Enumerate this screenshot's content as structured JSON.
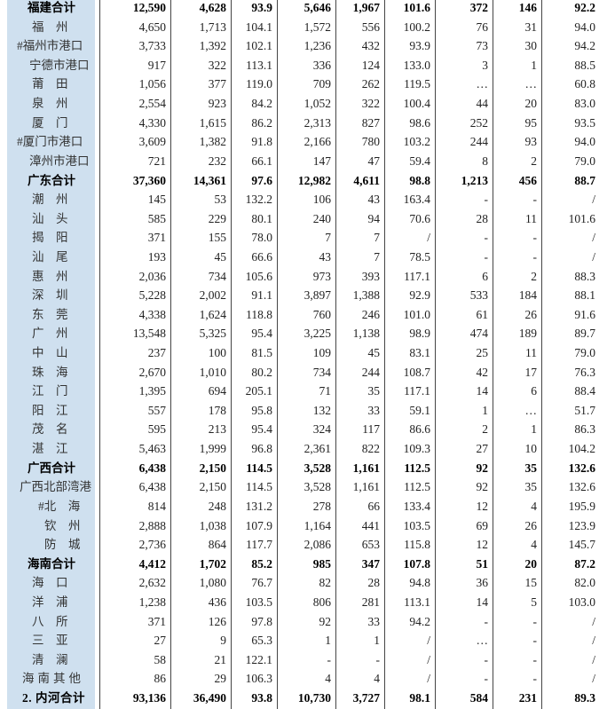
{
  "colors": {
    "name_column_bg": "#cfe0ef",
    "grid_line": "#454545",
    "text_regular": "#222222",
    "text_bold": "#000000"
  },
  "table": {
    "rows": [
      {
        "name": "福建合计",
        "level": "section",
        "values": [
          "12,590",
          "4,628",
          "93.9",
          "5,646",
          "1,967",
          "101.6",
          "372",
          "146",
          "92.2"
        ]
      },
      {
        "name": "福　州",
        "level": "city",
        "values": [
          "4,650",
          "1,713",
          "104.1",
          "1,572",
          "556",
          "100.2",
          "76",
          "31",
          "94.0"
        ]
      },
      {
        "name": "#福州市港口",
        "level": "hash",
        "values": [
          "3,733",
          "1,392",
          "102.1",
          "1,236",
          "432",
          "93.9",
          "73",
          "30",
          "94.2"
        ]
      },
      {
        "name": "宁德市港口",
        "level": "sub",
        "values": [
          "917",
          "322",
          "113.1",
          "336",
          "124",
          "133.0",
          "3",
          "1",
          "88.5"
        ]
      },
      {
        "name": "莆　田",
        "level": "city",
        "values": [
          "1,056",
          "377",
          "119.0",
          "709",
          "262",
          "119.5",
          "…",
          "…",
          "60.8"
        ]
      },
      {
        "name": "泉　州",
        "level": "city",
        "values": [
          "2,554",
          "923",
          "84.2",
          "1,052",
          "322",
          "100.4",
          "44",
          "20",
          "83.0"
        ]
      },
      {
        "name": "厦　门",
        "level": "city",
        "values": [
          "4,330",
          "1,615",
          "86.2",
          "2,313",
          "827",
          "98.6",
          "252",
          "95",
          "93.5"
        ]
      },
      {
        "name": "#厦门市港口",
        "level": "hash",
        "values": [
          "3,609",
          "1,382",
          "91.8",
          "2,166",
          "780",
          "103.2",
          "244",
          "93",
          "94.0"
        ]
      },
      {
        "name": "漳州市港口",
        "level": "sub",
        "values": [
          "721",
          "232",
          "66.1",
          "147",
          "47",
          "59.4",
          "8",
          "2",
          "79.0"
        ]
      },
      {
        "name": "广东合计",
        "level": "section",
        "values": [
          "37,360",
          "14,361",
          "97.6",
          "12,982",
          "4,611",
          "98.8",
          "1,213",
          "456",
          "88.7"
        ]
      },
      {
        "name": "潮　州",
        "level": "city",
        "values": [
          "145",
          "53",
          "132.2",
          "106",
          "43",
          "163.4",
          "-",
          "-",
          "/"
        ]
      },
      {
        "name": "汕　头",
        "level": "city",
        "values": [
          "585",
          "229",
          "80.1",
          "240",
          "94",
          "70.6",
          "28",
          "11",
          "101.6"
        ]
      },
      {
        "name": "揭　阳",
        "level": "city",
        "values": [
          "371",
          "155",
          "78.0",
          "7",
          "7",
          "/",
          "-",
          "-",
          "/"
        ]
      },
      {
        "name": "汕　尾",
        "level": "city",
        "values": [
          "193",
          "45",
          "66.6",
          "43",
          "7",
          "78.5",
          "-",
          "-",
          "/"
        ]
      },
      {
        "name": "惠　州",
        "level": "city",
        "values": [
          "2,036",
          "734",
          "105.6",
          "973",
          "393",
          "117.1",
          "6",
          "2",
          "88.3"
        ]
      },
      {
        "name": "深　圳",
        "level": "city",
        "values": [
          "5,228",
          "2,002",
          "91.1",
          "3,897",
          "1,388",
          "92.9",
          "533",
          "184",
          "88.1"
        ]
      },
      {
        "name": "东　莞",
        "level": "city",
        "values": [
          "4,338",
          "1,624",
          "118.8",
          "760",
          "246",
          "101.0",
          "61",
          "26",
          "91.6"
        ]
      },
      {
        "name": "广　州",
        "level": "city",
        "values": [
          "13,548",
          "5,325",
          "95.4",
          "3,225",
          "1,138",
          "98.9",
          "474",
          "189",
          "89.7"
        ]
      },
      {
        "name": "中　山",
        "level": "city",
        "values": [
          "237",
          "100",
          "81.5",
          "109",
          "45",
          "83.1",
          "25",
          "11",
          "79.0"
        ]
      },
      {
        "name": "珠　海",
        "level": "city",
        "values": [
          "2,670",
          "1,010",
          "80.2",
          "734",
          "244",
          "108.7",
          "42",
          "17",
          "76.3"
        ]
      },
      {
        "name": "江　门",
        "level": "city",
        "values": [
          "1,395",
          "694",
          "205.1",
          "71",
          "35",
          "117.1",
          "14",
          "6",
          "88.4"
        ]
      },
      {
        "name": "阳　江",
        "level": "city",
        "values": [
          "557",
          "178",
          "95.8",
          "132",
          "33",
          "59.1",
          "1",
          "…",
          "51.7"
        ]
      },
      {
        "name": "茂　名",
        "level": "city",
        "values": [
          "595",
          "213",
          "95.4",
          "324",
          "117",
          "86.6",
          "2",
          "1",
          "86.3"
        ]
      },
      {
        "name": "湛　江",
        "level": "city",
        "values": [
          "5,463",
          "1,999",
          "96.8",
          "2,361",
          "822",
          "109.3",
          "27",
          "10",
          "104.2"
        ]
      },
      {
        "name": "广西合计",
        "level": "section",
        "values": [
          "6,438",
          "2,150",
          "114.5",
          "3,528",
          "1,161",
          "112.5",
          "92",
          "35",
          "132.6"
        ]
      },
      {
        "name": "广西北部湾港",
        "level": "wide",
        "values": [
          "6,438",
          "2,150",
          "114.5",
          "3,528",
          "1,161",
          "112.5",
          "92",
          "35",
          "132.6"
        ]
      },
      {
        "name": "#北　海",
        "level": "hash2",
        "values": [
          "814",
          "248",
          "131.2",
          "278",
          "66",
          "133.4",
          "12",
          "4",
          "195.9"
        ]
      },
      {
        "name": "钦　州",
        "level": "city2",
        "values": [
          "2,888",
          "1,038",
          "107.9",
          "1,164",
          "441",
          "103.5",
          "69",
          "26",
          "123.9"
        ]
      },
      {
        "name": "防　城",
        "level": "city2",
        "values": [
          "2,736",
          "864",
          "117.7",
          "2,086",
          "653",
          "115.8",
          "12",
          "4",
          "145.7"
        ]
      },
      {
        "name": "海南合计",
        "level": "section",
        "values": [
          "4,412",
          "1,702",
          "85.2",
          "985",
          "347",
          "107.8",
          "51",
          "20",
          "87.2"
        ]
      },
      {
        "name": "海　口",
        "level": "city",
        "values": [
          "2,632",
          "1,080",
          "76.7",
          "82",
          "28",
          "94.8",
          "36",
          "15",
          "82.0"
        ]
      },
      {
        "name": "洋　浦",
        "level": "city",
        "values": [
          "1,238",
          "436",
          "103.5",
          "806",
          "281",
          "113.1",
          "14",
          "5",
          "103.0"
        ]
      },
      {
        "name": "八　所",
        "level": "city",
        "values": [
          "371",
          "126",
          "97.8",
          "92",
          "33",
          "94.2",
          "-",
          "-",
          "/"
        ]
      },
      {
        "name": "三　亚",
        "level": "city",
        "values": [
          "27",
          "9",
          "65.3",
          "1",
          "1",
          "/",
          "…",
          "-",
          "/"
        ]
      },
      {
        "name": "清　澜",
        "level": "city",
        "values": [
          "58",
          "21",
          "122.1",
          "-",
          "-",
          "/",
          "-",
          "-",
          "/"
        ]
      },
      {
        "name": "海南其他",
        "level": "flat",
        "values": [
          "86",
          "29",
          "106.3",
          "4",
          "4",
          "/",
          "-",
          "-",
          "/"
        ]
      },
      {
        "name": "2. 内河合计",
        "level": "grand",
        "values": [
          "93,136",
          "36,490",
          "93.8",
          "10,730",
          "3,727",
          "98.1",
          "584",
          "231",
          "89.3"
        ]
      }
    ]
  }
}
